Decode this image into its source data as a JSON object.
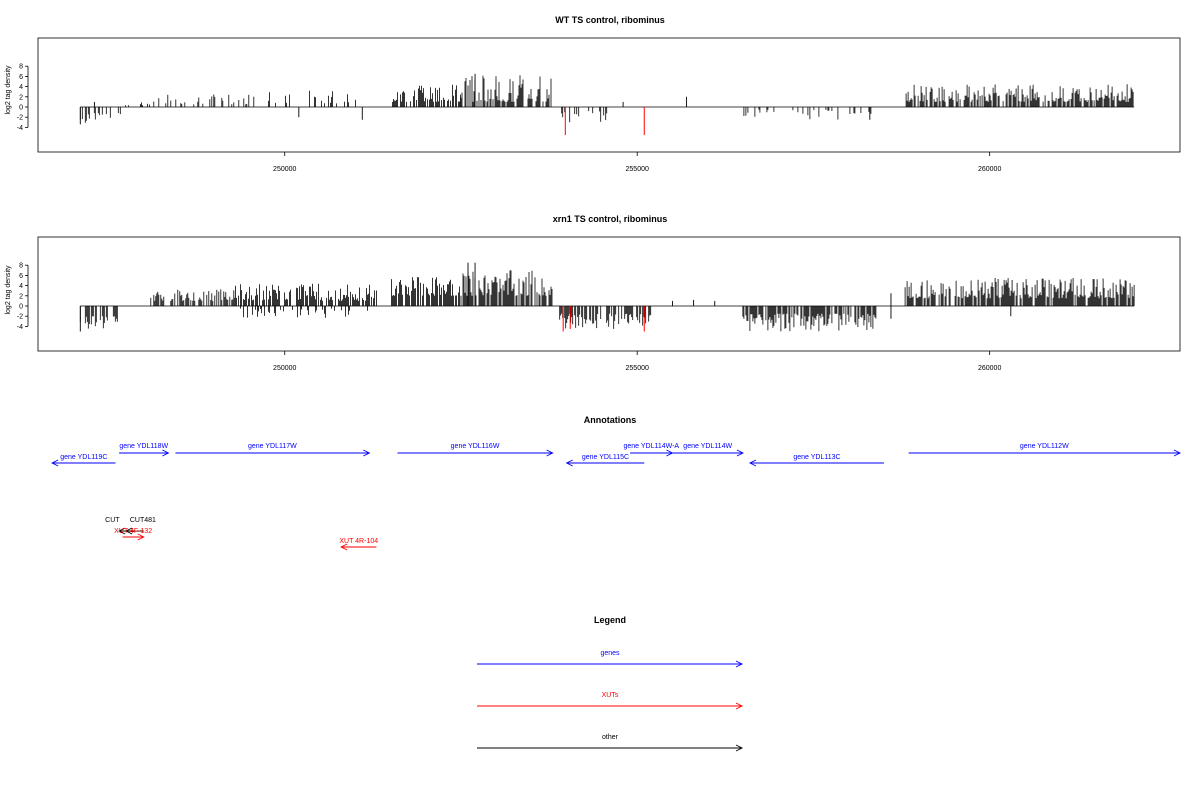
{
  "colors": {
    "gene": "#0000ff",
    "xut": "#ff0000",
    "other": "#000000",
    "signal": "#000000",
    "highlight": "#ff0000"
  },
  "chart_data": [
    {
      "type": "bar",
      "title": "WT TS control, ribominus",
      "ylabel": "log2 tag density",
      "ylim": [
        -5,
        9
      ],
      "yticks": [
        8,
        6,
        4,
        2,
        0,
        -2,
        -4
      ],
      "xlim": [
        246500,
        262700
      ],
      "xticks": [
        250000,
        255000,
        260000
      ],
      "xtick_labels": [
        "250000",
        "255000",
        "260000"
      ],
      "x_start": 247100,
      "x_end": 262050,
      "segments": [
        {
          "x0": 247100,
          "x1": 247700,
          "sign": -1,
          "min": 1.0,
          "max": 3.2,
          "density": 0.5
        },
        {
          "x0": 247700,
          "x1": 248100,
          "sign": 1,
          "min": 0.3,
          "max": 1.0,
          "density": 0.2
        },
        {
          "x0": 248100,
          "x1": 249600,
          "sign": 1,
          "min": 0.5,
          "max": 2.5,
          "density": 0.5
        },
        {
          "x0": 249600,
          "x1": 250250,
          "sign": 1,
          "min": 0.8,
          "max": 3.0,
          "density": 0.4
        },
        {
          "x0": 250250,
          "x1": 251300,
          "sign": 1,
          "min": 0.6,
          "max": 3.2,
          "density": 0.45
        },
        {
          "x0": 251500,
          "x1": 252500,
          "sign": 1,
          "min": 1.0,
          "max": 4.5,
          "density": 1.1
        },
        {
          "x0": 252500,
          "x1": 253800,
          "sign": 1,
          "min": 1.0,
          "max": 6.5,
          "density": 1.1
        },
        {
          "x0": 253900,
          "x1": 254700,
          "sign": -1,
          "min": 0.8,
          "max": 3.2,
          "density": 0.5
        },
        {
          "x0": 256500,
          "x1": 258400,
          "sign": -1,
          "min": 0.5,
          "max": 2.5,
          "density": 0.3
        },
        {
          "x0": 258800,
          "x1": 262050,
          "sign": 1,
          "min": 1.0,
          "max": 4.5,
          "density": 1.2
        }
      ],
      "spikes": [
        {
          "x": 247100,
          "y": -3.4
        },
        {
          "x": 247300,
          "y": 1.0
        },
        {
          "x": 250200,
          "y": -2.0
        },
        {
          "x": 251100,
          "y": -2.5
        },
        {
          "x": 252700,
          "y": 6.5
        },
        {
          "x": 254800,
          "y": 1.0
        },
        {
          "x": 255700,
          "y": 2.0
        },
        {
          "x": 258300,
          "y": -2.5
        }
      ],
      "highlights": [
        {
          "x": 253980,
          "y": -5.5
        },
        {
          "x": 255100,
          "y": -5.5
        }
      ]
    },
    {
      "type": "bar",
      "title": "xrn1 TS control, ribominus",
      "ylabel": "log2 tag density",
      "ylim": [
        -5,
        9
      ],
      "yticks": [
        8,
        6,
        4,
        2,
        0,
        -2,
        -4
      ],
      "xlim": [
        246500,
        262700
      ],
      "xticks": [
        250000,
        255000,
        260000
      ],
      "xtick_labels": [
        "250000",
        "255000",
        "260000"
      ],
      "x_start": 247100,
      "x_end": 262050,
      "segments": [
        {
          "x0": 247100,
          "x1": 247700,
          "sign": -1,
          "min": 2.0,
          "max": 4.5,
          "density": 1.1
        },
        {
          "x0": 248100,
          "x1": 249300,
          "sign": 1,
          "min": 1.0,
          "max": 3.5,
          "density": 1.1
        },
        {
          "x0": 249300,
          "x1": 250250,
          "sign": 1,
          "min": 1.0,
          "max": 4.5,
          "density": 1.1
        },
        {
          "x0": 250250,
          "x1": 251300,
          "sign": 1,
          "min": 1.0,
          "max": 4.5,
          "density": 1.1
        },
        {
          "x0": 249300,
          "x1": 251300,
          "sign": -1,
          "min": 0.5,
          "max": 2.5,
          "density": 0.35
        },
        {
          "x0": 251500,
          "x1": 252500,
          "sign": 1,
          "min": 2.0,
          "max": 6.0,
          "density": 1.3
        },
        {
          "x0": 252500,
          "x1": 253800,
          "sign": 1,
          "min": 2.0,
          "max": 7.0,
          "density": 1.3
        },
        {
          "x0": 253900,
          "x1": 255200,
          "sign": -1,
          "min": 1.5,
          "max": 4.5,
          "density": 1.1
        },
        {
          "x0": 256500,
          "x1": 258400,
          "sign": -1,
          "min": 1.5,
          "max": 5.0,
          "density": 1.2
        },
        {
          "x0": 258800,
          "x1": 262050,
          "sign": 1,
          "min": 1.5,
          "max": 5.5,
          "density": 1.3
        }
      ],
      "spikes": [
        {
          "x": 247100,
          "y": -5.0
        },
        {
          "x": 252600,
          "y": 8.5
        },
        {
          "x": 252700,
          "y": 8.5
        },
        {
          "x": 255500,
          "y": 1.0
        },
        {
          "x": 255800,
          "y": 1.2
        },
        {
          "x": 256100,
          "y": 1.0
        },
        {
          "x": 258600,
          "y": 2.5
        },
        {
          "x": 258600,
          "y": -2.5
        },
        {
          "x": 260300,
          "y": -2.0
        }
      ],
      "highlights": [
        {
          "x": 253950,
          "y": -5.0
        },
        {
          "x": 254050,
          "y": -4.5
        },
        {
          "x": 255100,
          "y": -5.0
        }
      ]
    }
  ],
  "annotations": {
    "title": "Annotations",
    "features": [
      {
        "label": "gene YDL118W",
        "kind": "gene",
        "start": 247650,
        "end": 248350,
        "strand": "+",
        "row": 0
      },
      {
        "label": "gene YDL119C",
        "kind": "gene",
        "start": 246700,
        "end": 247600,
        "strand": "-",
        "row": 1
      },
      {
        "label": "gene YDL117W",
        "kind": "gene",
        "start": 248450,
        "end": 251200,
        "strand": "+",
        "row": 0
      },
      {
        "label": "gene YDL116W",
        "kind": "gene",
        "start": 251600,
        "end": 253800,
        "strand": "+",
        "row": 0
      },
      {
        "label": "gene YDL114W-A",
        "kind": "gene",
        "start": 254900,
        "end": 255500,
        "strand": "+",
        "row": 0
      },
      {
        "label": "gene YDL115C",
        "kind": "gene",
        "start": 254000,
        "end": 255100,
        "strand": "-",
        "row": 1
      },
      {
        "label": "gene YDL114W",
        "kind": "gene",
        "start": 255500,
        "end": 256500,
        "strand": "+",
        "row": 0
      },
      {
        "label": "gene YDL113C",
        "kind": "gene",
        "start": 256600,
        "end": 258500,
        "strand": "-",
        "row": 1
      },
      {
        "label": "gene YDL112W",
        "kind": "gene",
        "start": 258850,
        "end": 262700,
        "strand": "+",
        "row": 0
      },
      {
        "label": "CUT",
        "kind": "other",
        "start": 247650,
        "end": 247800,
        "strand": "-",
        "row": 2
      },
      {
        "label": "CUT481",
        "kind": "other",
        "start": 247750,
        "end": 248000,
        "strand": "-",
        "row": 2
      },
      {
        "label": "XUT 4F-132",
        "kind": "xut",
        "start": 247700,
        "end": 248000,
        "strand": "+",
        "row": 3
      },
      {
        "label": "XUT 4R-104",
        "kind": "xut",
        "start": 250800,
        "end": 251300,
        "strand": "-",
        "row": 4
      }
    ]
  },
  "legend": {
    "title": "Legend",
    "items": [
      {
        "label": "genes",
        "kind": "gene"
      },
      {
        "label": "XUTs",
        "kind": "xut"
      },
      {
        "label": "other",
        "kind": "other"
      }
    ]
  }
}
